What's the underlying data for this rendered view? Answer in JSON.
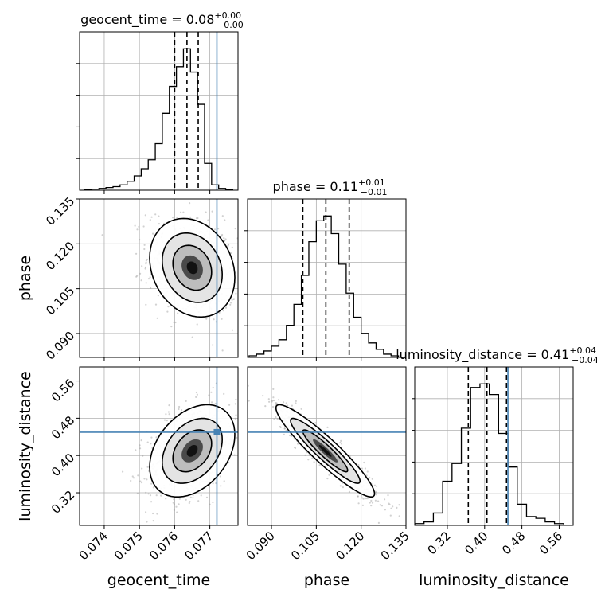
{
  "chart_data": {
    "type": "corner",
    "parameters": [
      "geocent_time",
      "phase",
      "luminosity_distance"
    ],
    "truth": {
      "geocent_time": 0.0772,
      "phase": null,
      "luminosity_distance": 0.45
    },
    "titles": [
      {
        "param": "geocent_time",
        "main": "geocent_time = 0.08",
        "sup": "+0.00",
        "sub": "−0.00"
      },
      {
        "param": "phase",
        "main": "phase = 0.11",
        "sup": "+0.01",
        "sub": "−0.01"
      },
      {
        "param": "luminosity_distance",
        "main": "luminosity_distance = 0.41",
        "sup": "+0.04",
        "sub": "−0.04"
      }
    ],
    "axes": {
      "geocent_time": {
        "label": "geocent_time",
        "range": [
          0.0733,
          0.0778
        ],
        "ticks": [
          0.074,
          0.075,
          0.076,
          0.077
        ],
        "tick_labels": [
          "0.074",
          "0.075",
          "0.076",
          "0.077"
        ]
      },
      "phase": {
        "label": "phase",
        "range": [
          0.082,
          0.135
        ],
        "ticks": [
          0.09,
          0.105,
          0.12,
          0.135
        ],
        "tick_labels": [
          "0.090",
          "0.105",
          "0.120",
          "0.135"
        ]
      },
      "luminosity_distance": {
        "label": "luminosity_distance",
        "range": [
          0.25,
          0.59
        ],
        "ticks": [
          0.32,
          0.4,
          0.48,
          0.56
        ],
        "tick_labels": [
          "0.32",
          "0.40",
          "0.48",
          "0.56"
        ]
      }
    },
    "histograms": [
      {
        "param": "geocent_time",
        "bin_edges": [
          0.07345,
          0.07365,
          0.07385,
          0.07405,
          0.07425,
          0.07445,
          0.07465,
          0.07485,
          0.07505,
          0.07525,
          0.07545,
          0.07565,
          0.07585,
          0.07605,
          0.07625,
          0.07645,
          0.07665,
          0.07685,
          0.07705,
          0.07725,
          0.07745,
          0.07765
        ],
        "counts": [
          0.005,
          0.006,
          0.01,
          0.015,
          0.02,
          0.03,
          0.05,
          0.08,
          0.12,
          0.17,
          0.26,
          0.43,
          0.58,
          0.69,
          0.79,
          0.66,
          0.48,
          0.15,
          0.03,
          0.01,
          0.005
        ],
        "quantiles": [
          0.076,
          0.07635,
          0.07667
        ]
      },
      {
        "param": "phase",
        "bin_edges": [
          0.0825,
          0.085,
          0.0875,
          0.09,
          0.0925,
          0.095,
          0.0975,
          0.1,
          0.1025,
          0.105,
          0.1075,
          0.11,
          0.1125,
          0.115,
          0.1175,
          0.12,
          0.1225,
          0.125,
          0.1275,
          0.13,
          0.1325
        ],
        "counts": [
          0.01,
          0.02,
          0.04,
          0.07,
          0.11,
          0.2,
          0.33,
          0.51,
          0.72,
          0.85,
          0.88,
          0.77,
          0.58,
          0.4,
          0.25,
          0.15,
          0.09,
          0.05,
          0.02,
          0.01
        ],
        "quantiles": [
          0.1005,
          0.1082,
          0.116
        ]
      },
      {
        "param": "luminosity_distance",
        "bin_edges": [
          0.25,
          0.27,
          0.29,
          0.31,
          0.33,
          0.35,
          0.37,
          0.39,
          0.41,
          0.43,
          0.45,
          0.47,
          0.49,
          0.51,
          0.53,
          0.55,
          0.57
        ],
        "counts": [
          0.01,
          0.02,
          0.07,
          0.25,
          0.35,
          0.55,
          0.78,
          0.8,
          0.74,
          0.52,
          0.33,
          0.12,
          0.05,
          0.04,
          0.02,
          0.01
        ],
        "quantiles": [
          0.365,
          0.405,
          0.447
        ]
      }
    ],
    "contours_2d": [
      {
        "x": "geocent_time",
        "y": "phase",
        "center": [
          0.0765,
          0.112
        ],
        "sigma": [
          0.00055,
          0.0075
        ],
        "rho": -0.2,
        "levels": [
          1,
          1.55,
          2.2
        ]
      },
      {
        "x": "geocent_time",
        "y": "luminosity_distance",
        "center": [
          0.0765,
          0.41
        ],
        "sigma": [
          0.00055,
          0.045
        ],
        "rho": 0.35,
        "levels": [
          1,
          1.55,
          2.2
        ]
      },
      {
        "x": "phase",
        "y": "luminosity_distance",
        "center": [
          0.108,
          0.41
        ],
        "sigma": [
          0.0075,
          0.045
        ],
        "rho": -0.93,
        "levels": [
          1,
          1.55,
          2.2
        ]
      }
    ],
    "grid": true
  }
}
